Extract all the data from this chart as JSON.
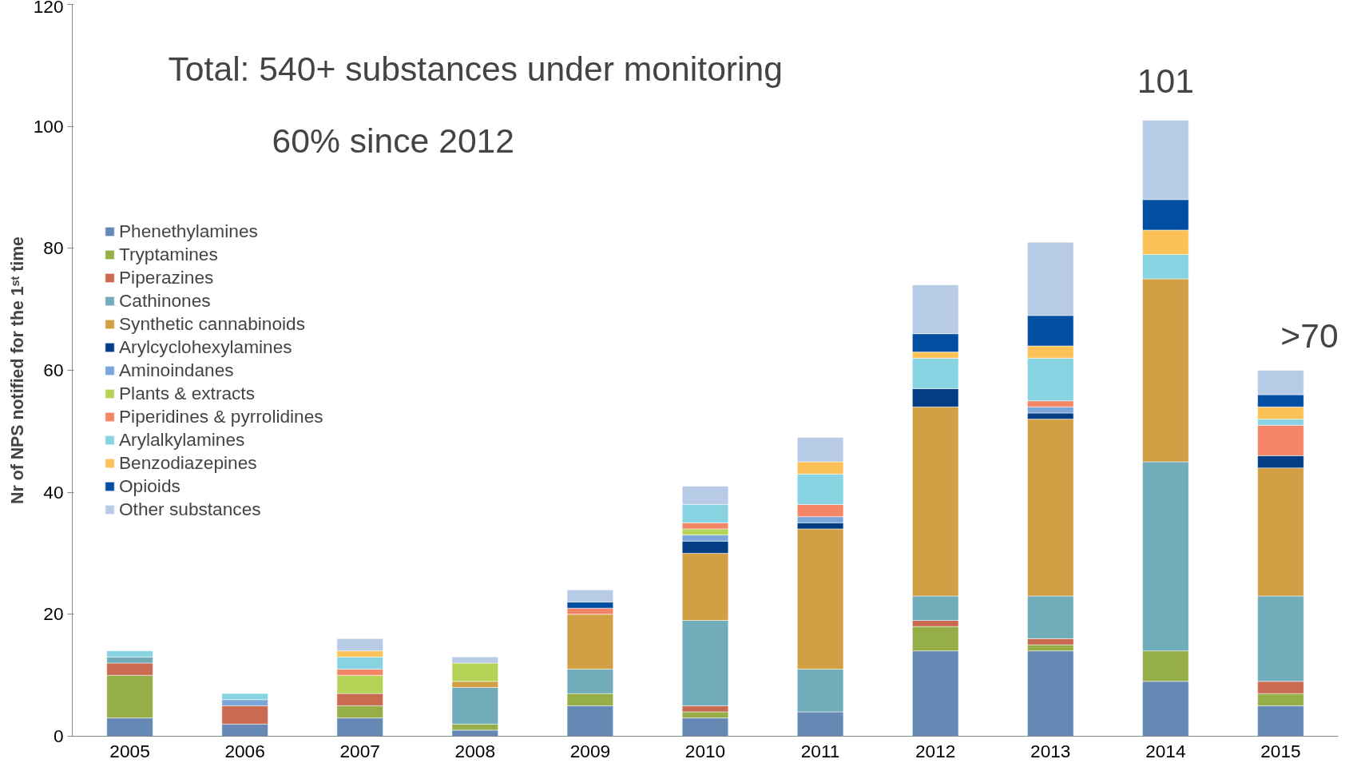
{
  "chart_data": {
    "type": "bar",
    "stacked": true,
    "ylabel": "Nr of NPS notified for the 1ˢᵗ time",
    "categories": [
      "2005",
      "2006",
      "2007",
      "2008",
      "2009",
      "2010",
      "2011",
      "2012",
      "2013",
      "2014",
      "2015"
    ],
    "ylim": [
      0,
      120
    ],
    "yticks": [
      0,
      20,
      40,
      60,
      80,
      100,
      120
    ],
    "grid": false,
    "legend": "left",
    "annotations": [
      "Total: 540+ substances under monitoring",
      "60% since 2012",
      {
        "text": "101",
        "x": "2014",
        "y": 101
      },
      {
        "text": ">70",
        "x": "2015",
        "y": 60
      }
    ],
    "series": [
      {
        "name": "Phenethylamines",
        "color": "#6688b4",
        "values": [
          3,
          2,
          3,
          1,
          5,
          3,
          4,
          14,
          14,
          9,
          5
        ]
      },
      {
        "name": "Tryptamines",
        "color": "#95ae47",
        "values": [
          7,
          null,
          2,
          1,
          2,
          1,
          null,
          4,
          1,
          5,
          2
        ]
      },
      {
        "name": "Piperazines",
        "color": "#c96a51",
        "values": [
          2,
          3,
          2,
          null,
          null,
          1,
          null,
          1,
          1,
          null,
          2
        ]
      },
      {
        "name": "Cathinones",
        "color": "#71acba",
        "values": [
          1,
          null,
          null,
          6,
          4,
          14,
          7,
          4,
          7,
          31,
          14
        ]
      },
      {
        "name": "Synthetic cannabinoids",
        "color": "#d1a044",
        "values": [
          null,
          null,
          null,
          1,
          9,
          11,
          23,
          31,
          29,
          30,
          21
        ]
      },
      {
        "name": "Arylcyclohexylamines",
        "color": "#033d84",
        "values": [
          null,
          null,
          null,
          null,
          null,
          2,
          1,
          3,
          1,
          null,
          2
        ]
      },
      {
        "name": "Aminoindanes",
        "color": "#7ba6d9",
        "values": [
          null,
          1,
          null,
          null,
          null,
          1,
          1,
          null,
          1,
          null,
          null
        ]
      },
      {
        "name": "Plants & extracts",
        "color": "#b4d357",
        "values": [
          null,
          null,
          3,
          3,
          null,
          1,
          null,
          null,
          null,
          null,
          null
        ]
      },
      {
        "name": "Piperidines & pyrrolidines",
        "color": "#f48667",
        "values": [
          null,
          null,
          1,
          null,
          1,
          1,
          2,
          null,
          1,
          null,
          5
        ]
      },
      {
        "name": "Arylalkylamines",
        "color": "#88d3e1",
        "values": [
          1,
          1,
          2,
          null,
          null,
          3,
          5,
          5,
          7,
          4,
          1
        ]
      },
      {
        "name": "Benzodiazepines",
        "color": "#fcc257",
        "values": [
          null,
          null,
          1,
          null,
          null,
          null,
          2,
          1,
          2,
          4,
          2
        ]
      },
      {
        "name": "Opioids",
        "color": "#024ea2",
        "values": [
          null,
          null,
          null,
          null,
          1,
          null,
          null,
          3,
          5,
          5,
          2
        ]
      },
      {
        "name": "Other substances",
        "color": "#b8cbe6",
        "values": [
          null,
          null,
          2,
          1,
          2,
          3,
          4,
          8,
          12,
          13,
          4
        ]
      }
    ]
  }
}
